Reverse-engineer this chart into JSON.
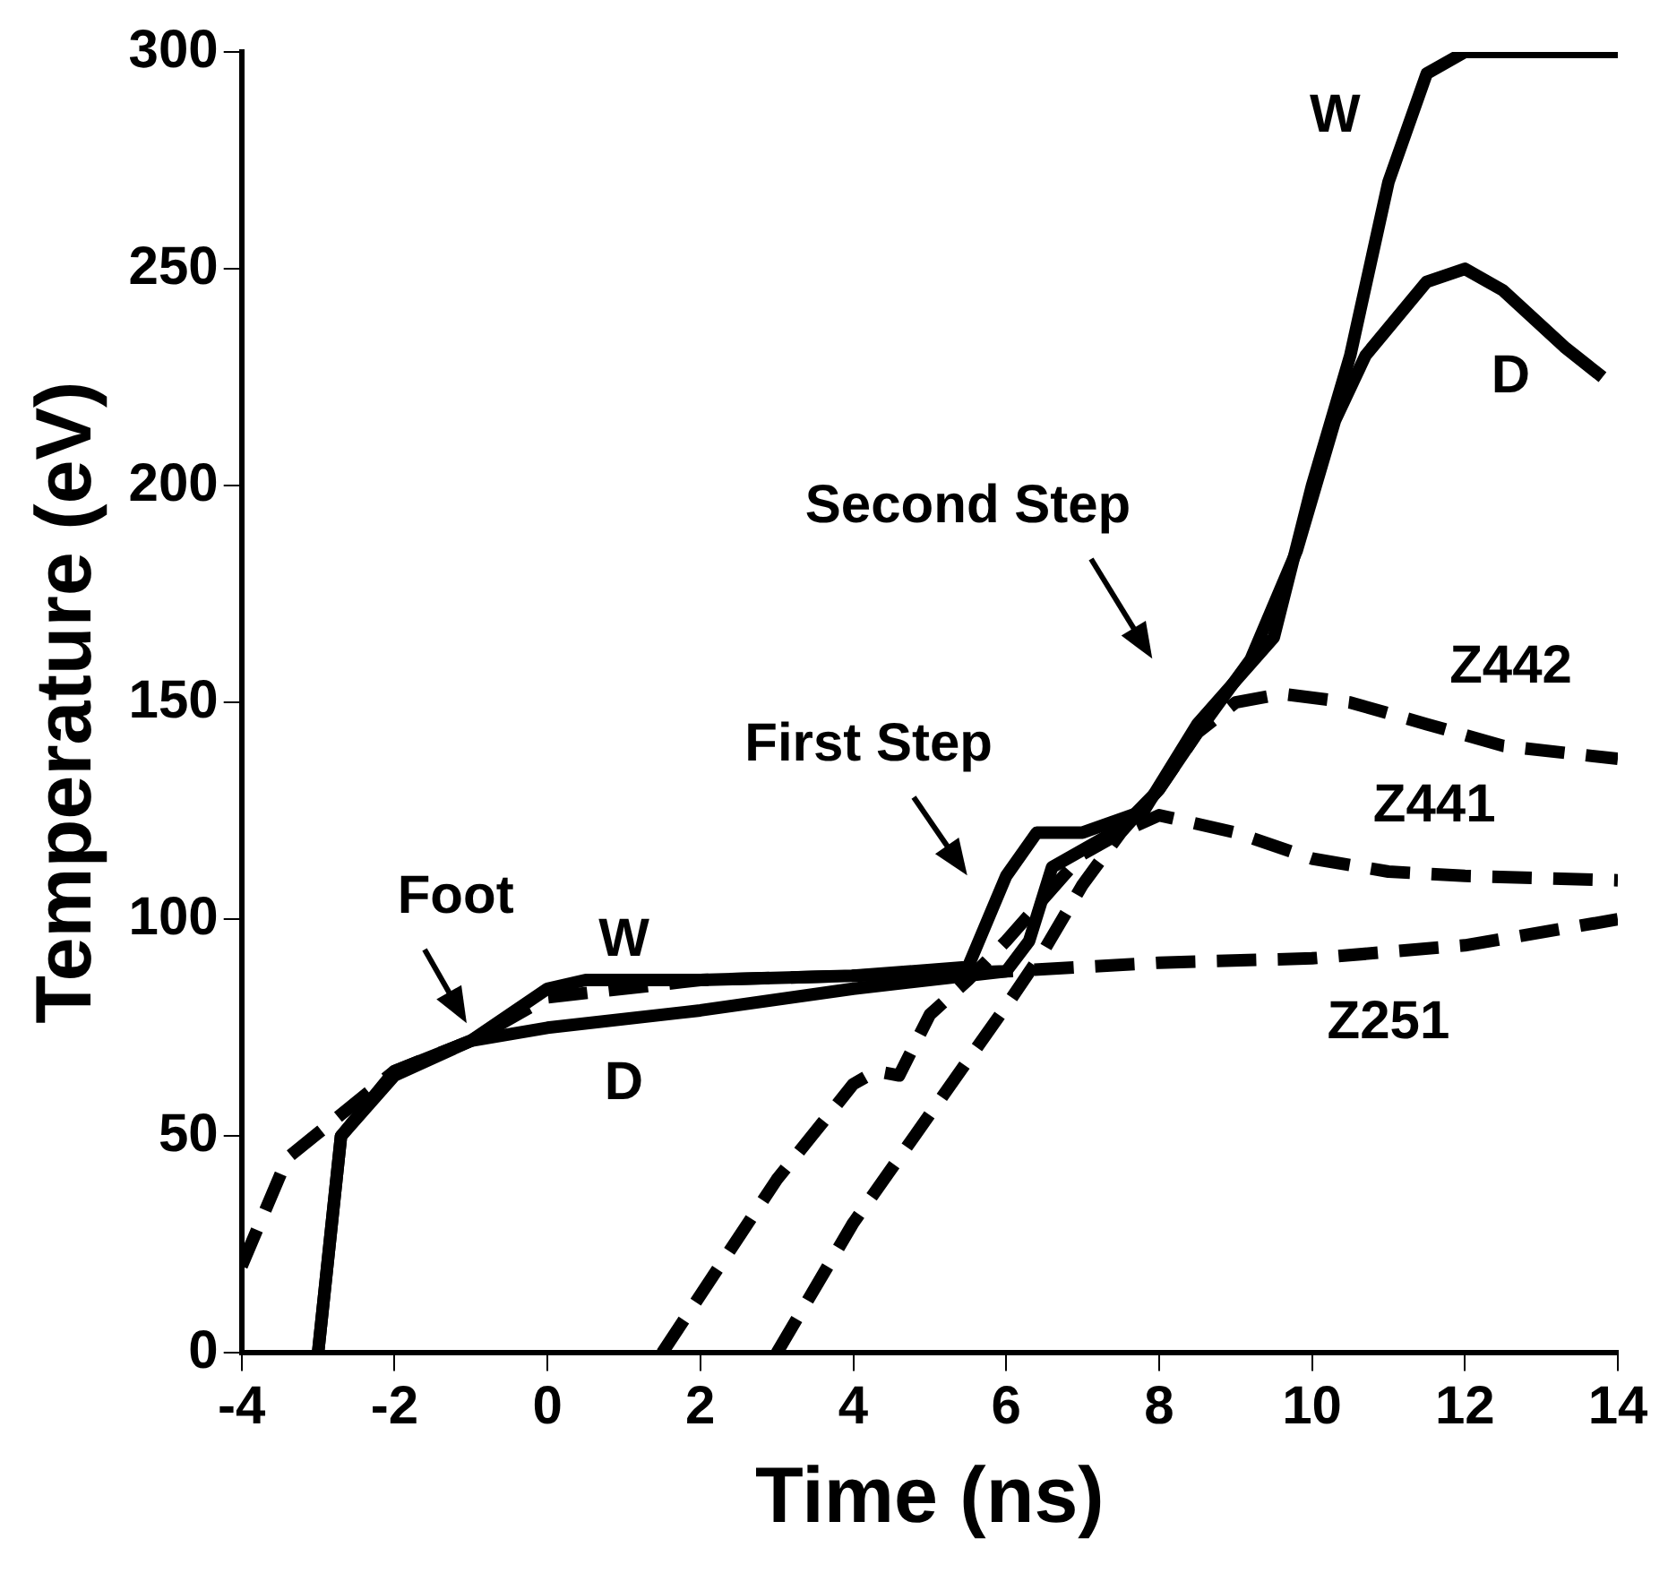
{
  "chart_data": {
    "type": "line",
    "xlabel": "Time (ns)",
    "ylabel": "Temperature (eV)",
    "xlim": [
      -4,
      14
    ],
    "ylim": [
      0,
      300
    ],
    "xticks": [
      -4,
      -2,
      0,
      2,
      4,
      6,
      8,
      10,
      12,
      14
    ],
    "yticks": [
      0,
      50,
      100,
      150,
      200,
      250,
      300
    ],
    "grid": false,
    "legend": false,
    "marker": "none",
    "series": [
      {
        "name": "W",
        "color": "#000000",
        "line_style": "solid",
        "x": [
          -3,
          -2.7,
          -2,
          -1,
          0,
          0.5,
          2,
          4,
          5.5,
          6,
          6.4,
          7,
          7.8,
          8.5,
          9.5,
          10,
          10.5,
          11,
          11.5,
          12,
          14
        ],
        "values": [
          0,
          50,
          65,
          72,
          84,
          86,
          86,
          87,
          89,
          110,
          120,
          120,
          125,
          145,
          165,
          200,
          230,
          270,
          295,
          300,
          300
        ]
      },
      {
        "name": "D",
        "color": "#000000",
        "line_style": "solid",
        "x": [
          -3,
          -2.7,
          -2,
          -1,
          0,
          2,
          4,
          6,
          6.3,
          6.6,
          7.5,
          8,
          8.5,
          9.2,
          9.8,
          10.3,
          10.7,
          11.5,
          12,
          12.5,
          13.3,
          13.8
        ],
        "values": [
          0,
          50,
          64,
          72,
          75,
          79,
          84,
          88,
          95,
          112,
          121,
          130,
          143,
          160,
          185,
          215,
          230,
          247,
          250,
          245,
          232,
          225
        ]
      },
      {
        "name": "Z251",
        "color": "#000000",
        "line_style": "dashed",
        "x": [
          -4,
          -3.4,
          -2,
          -1,
          0,
          2,
          4,
          6,
          8,
          10,
          12,
          14
        ],
        "values": [
          20,
          45,
          65,
          72,
          82,
          86,
          87,
          88,
          90,
          91,
          94,
          100
        ]
      },
      {
        "name": "Z441",
        "color": "#000000",
        "line_style": "dashed",
        "x": [
          1.5,
          3,
          4,
          4.3,
          4.6,
          5,
          5.5,
          6,
          7,
          7.5,
          8,
          9,
          10,
          11,
          12,
          14
        ],
        "values": [
          0,
          40,
          62,
          65,
          64,
          78,
          86,
          95,
          115,
          120,
          124,
          120,
          114,
          111,
          110,
          109
        ]
      },
      {
        "name": "Z442",
        "color": "#000000",
        "line_style": "dashed",
        "x": [
          3,
          4,
          5,
          6,
          6.5,
          7,
          7.5,
          8,
          8.5,
          9,
          9.6,
          10.5,
          11.5,
          12.5,
          14
        ],
        "values": [
          0,
          30,
          55,
          80,
          93,
          108,
          120,
          130,
          143,
          150,
          152,
          150,
          145,
          140,
          137
        ]
      }
    ],
    "annotations": [
      "Foot",
      "First Step",
      "Second Step"
    ]
  }
}
